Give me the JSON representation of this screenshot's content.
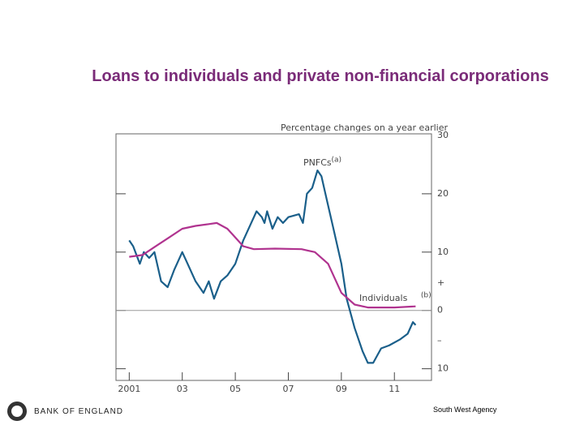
{
  "chart_data": {
    "type": "line",
    "title": "Loans to individuals and private non-financial corporations",
    "subtitle": "Percentage changes on a year earlier",
    "plus_sign": "+",
    "minus_sign": "–",
    "xlim": [
      2000.5,
      2012.4
    ],
    "xticks": [
      {
        "value": 2001,
        "label": "2001"
      },
      {
        "value": 2003,
        "label": "03"
      },
      {
        "value": 2005,
        "label": "05"
      },
      {
        "value": 2007,
        "label": "07"
      },
      {
        "value": 2009,
        "label": "09"
      },
      {
        "value": 2011,
        "label": "11"
      }
    ],
    "ylim": [
      -12,
      30
    ],
    "yticks": [
      {
        "value": -10,
        "label": "10"
      },
      0,
      10,
      20,
      30
    ],
    "series": [
      {
        "name": "PNFCs",
        "note": "(a)",
        "color": "#1a5f8a",
        "x": [
          2001,
          2001.15,
          2001.4,
          2001.55,
          2001.75,
          2001.95,
          2002.2,
          2002.45,
          2002.7,
          2003,
          2003.2,
          2003.5,
          2003.8,
          2004,
          2004.2,
          2004.45,
          2004.7,
          2005,
          2005.3,
          2005.6,
          2005.8,
          2006,
          2006.1,
          2006.2,
          2006.4,
          2006.6,
          2006.8,
          2007,
          2007.4,
          2007.55,
          2007.7,
          2007.9,
          2008.1,
          2008.25,
          2008.4,
          2008.7,
          2009,
          2009.2,
          2009.5,
          2009.8,
          2010,
          2010.2,
          2010.5,
          2010.8,
          2011.2,
          2011.5,
          2011.7,
          2011.8
        ],
        "values": [
          12,
          11,
          8,
          10,
          9,
          10,
          5,
          4,
          7,
          10,
          8,
          5,
          3,
          5,
          2,
          5,
          6,
          8,
          12,
          15,
          17,
          16,
          15,
          17,
          14,
          16,
          15,
          16,
          16.5,
          15,
          20,
          21,
          24,
          23,
          20,
          14,
          8,
          2,
          -3,
          -7,
          -9,
          -9,
          -6.5,
          -6,
          -5,
          -4,
          -2,
          -2.5
        ]
      },
      {
        "name": "Individuals",
        "note": "(b)",
        "color": "#b0338f",
        "x": [
          2001,
          2001.5,
          2002,
          2002.5,
          2003,
          2003.5,
          2004,
          2004.3,
          2004.7,
          2005,
          2005.3,
          2005.7,
          2006.5,
          2007.5,
          2008,
          2008.5,
          2009,
          2009.5,
          2010,
          2011,
          2011.8
        ],
        "values": [
          9.2,
          9.5,
          11,
          12.5,
          14,
          14.5,
          14.8,
          15,
          14,
          12.5,
          11,
          10.5,
          10.6,
          10.5,
          10,
          8,
          3,
          1,
          0.5,
          0.5,
          0.7
        ]
      }
    ]
  },
  "footer": {
    "org": "BANK OF ENGLAND",
    "agency": "South West Agency"
  }
}
